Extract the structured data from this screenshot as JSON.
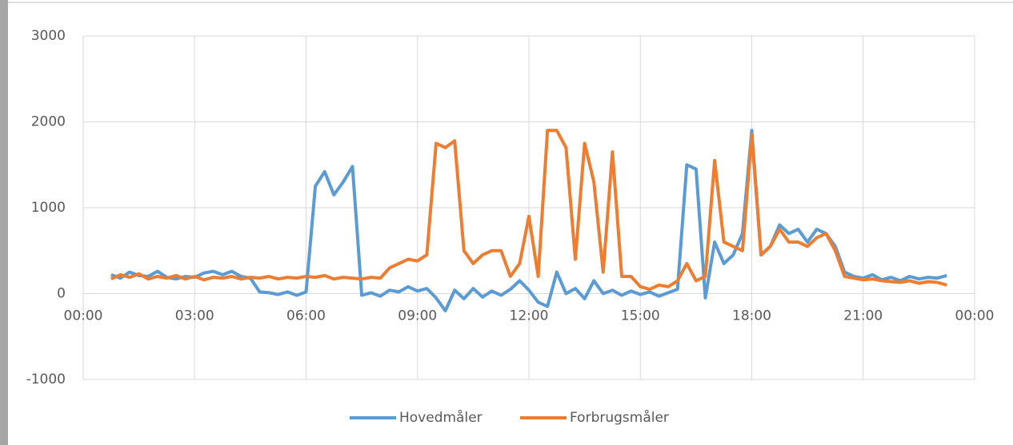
{
  "chart_data": {
    "type": "line",
    "x": [
      0.75,
      1,
      1.25,
      1.5,
      1.75,
      2,
      2.25,
      2.5,
      2.75,
      3,
      3.25,
      3.5,
      3.75,
      4,
      4.25,
      4.5,
      4.75,
      5,
      5.25,
      5.5,
      5.75,
      6,
      6.25,
      6.5,
      6.75,
      7,
      7.25,
      7.5,
      7.75,
      8,
      8.25,
      8.5,
      8.75,
      9,
      9.25,
      9.5,
      9.75,
      10,
      10.25,
      10.5,
      10.75,
      11,
      11.25,
      11.5,
      11.75,
      12,
      12.25,
      12.5,
      12.75,
      13,
      13.25,
      13.5,
      13.75,
      14,
      14.25,
      14.5,
      14.75,
      15,
      15.25,
      15.5,
      15.75,
      16,
      16.25,
      16.5,
      16.75,
      17,
      17.25,
      17.5,
      17.75,
      18,
      18.25,
      18.5,
      18.75,
      19,
      19.25,
      19.5,
      19.75,
      20,
      20.25,
      20.5,
      20.75,
      21,
      21.25,
      21.5,
      21.75,
      22,
      22.25,
      22.5,
      22.75,
      23,
      23.25
    ],
    "series": [
      {
        "name": "Hovedmåler",
        "color": "#5b9bd5",
        "values": [
          220,
          180,
          250,
          210,
          200,
          260,
          190,
          170,
          200,
          190,
          240,
          260,
          220,
          260,
          200,
          180,
          20,
          10,
          -10,
          20,
          -20,
          20,
          1250,
          1420,
          1150,
          1300,
          1480,
          -20,
          10,
          -30,
          40,
          20,
          80,
          30,
          60,
          -50,
          -200,
          40,
          -60,
          60,
          -40,
          30,
          -20,
          50,
          150,
          40,
          -100,
          -150,
          250,
          0,
          60,
          -60,
          150,
          0,
          40,
          -20,
          30,
          -10,
          20,
          -30,
          10,
          50,
          1500,
          1450,
          -50,
          600,
          350,
          450,
          700,
          1900,
          450,
          550,
          800,
          700,
          750,
          600,
          750,
          700,
          550,
          250,
          200,
          180,
          220,
          160,
          190,
          150,
          200,
          170,
          190,
          180,
          210
        ]
      },
      {
        "name": "Forbrugsmåler",
        "color": "#ed7d31",
        "values": [
          170,
          220,
          190,
          230,
          170,
          200,
          180,
          210,
          170,
          200,
          160,
          190,
          180,
          200,
          170,
          190,
          180,
          200,
          170,
          190,
          180,
          200,
          190,
          210,
          170,
          190,
          180,
          170,
          190,
          180,
          300,
          350,
          400,
          380,
          450,
          1750,
          1700,
          1780,
          500,
          350,
          450,
          500,
          500,
          200,
          350,
          900,
          200,
          1900,
          1900,
          1700,
          400,
          1750,
          1300,
          250,
          1650,
          200,
          200,
          80,
          50,
          100,
          80,
          150,
          350,
          150,
          200,
          1550,
          600,
          550,
          500,
          1850,
          450,
          550,
          750,
          600,
          600,
          550,
          650,
          700,
          500,
          200,
          180,
          160,
          170,
          150,
          140,
          130,
          150,
          120,
          140,
          130,
          100
        ]
      }
    ],
    "xlim": [
      0,
      24
    ],
    "xticks": [
      {
        "value": 0,
        "label": "00:00"
      },
      {
        "value": 3,
        "label": "03:00"
      },
      {
        "value": 6,
        "label": "06:00"
      },
      {
        "value": 9,
        "label": "09:00"
      },
      {
        "value": 12,
        "label": "12:00"
      },
      {
        "value": 15,
        "label": "15:00"
      },
      {
        "value": 18,
        "label": "18:00"
      },
      {
        "value": 21,
        "label": "21:00"
      },
      {
        "value": 24,
        "label": "00:00"
      }
    ],
    "ylim": [
      -1000,
      3000
    ],
    "yticks": [
      -1000,
      0,
      1000,
      2000,
      3000
    ],
    "grid": true,
    "legend": "bottom"
  }
}
